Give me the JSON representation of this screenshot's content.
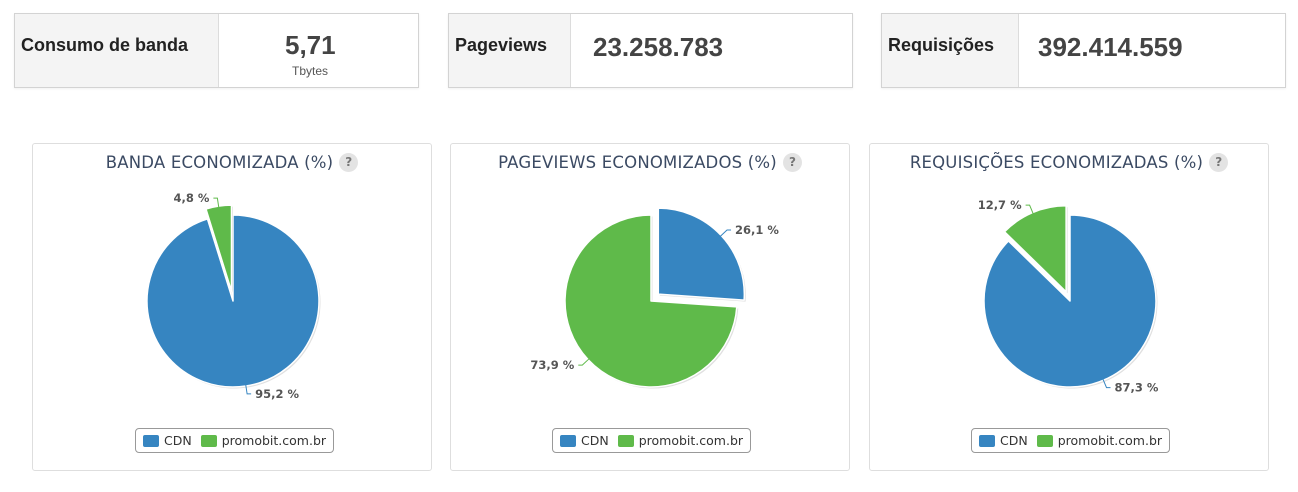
{
  "stats": [
    {
      "label": "Consumo de banda",
      "value": "5,71",
      "unit": "Tbytes"
    },
    {
      "label": "Pageviews",
      "value": "23.258.783"
    },
    {
      "label": "Requisições",
      "value": "392.414.559"
    }
  ],
  "colors": {
    "cdn": "#3685c1",
    "origin": "#5fba4a",
    "title": "#3b4a63"
  },
  "help_icon": {
    "name": "help-icon",
    "glyph": "?"
  },
  "chart_data": [
    {
      "type": "pie",
      "title": "BANDA ECONOMIZADA (%)",
      "legend": [
        "CDN",
        "promobit.com.br"
      ],
      "slices": [
        {
          "name": "CDN",
          "value": 95.2,
          "label": "95,2 %",
          "color": "#3685c1"
        },
        {
          "name": "promobit.com.br",
          "value": 4.8,
          "label": "4,8 %",
          "color": "#5fba4a"
        }
      ],
      "exploded": "promobit.com.br",
      "legend_position": "bottom"
    },
    {
      "type": "pie",
      "title": "PAGEVIEWS ECONOMIZADOS (%)",
      "legend": [
        "CDN",
        "promobit.com.br"
      ],
      "slices": [
        {
          "name": "CDN",
          "value": 26.1,
          "label": "26,1 %",
          "color": "#3685c1"
        },
        {
          "name": "promobit.com.br",
          "value": 73.9,
          "label": "73,9 %",
          "color": "#5fba4a"
        }
      ],
      "exploded": "CDN",
      "legend_position": "bottom"
    },
    {
      "type": "pie",
      "title": "REQUISIÇÕES ECONOMIZADAS (%)",
      "legend": [
        "CDN",
        "promobit.com.br"
      ],
      "slices": [
        {
          "name": "CDN",
          "value": 87.3,
          "label": "87,3 %",
          "color": "#3685c1"
        },
        {
          "name": "promobit.com.br",
          "value": 12.7,
          "label": "12,7 %",
          "color": "#5fba4a"
        }
      ],
      "exploded": "promobit.com.br",
      "legend_position": "bottom"
    }
  ]
}
